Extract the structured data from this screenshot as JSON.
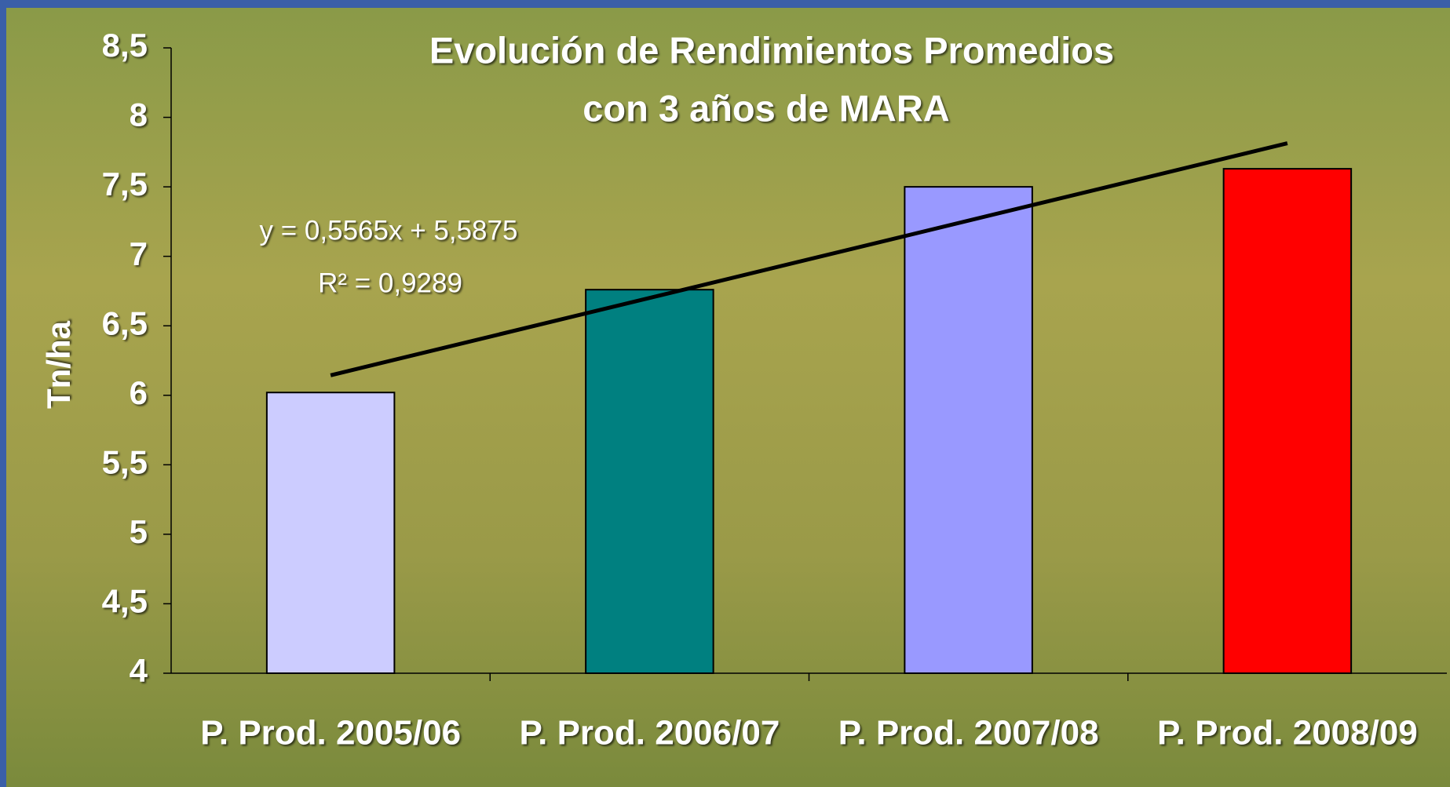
{
  "chart_data": {
    "type": "bar",
    "title": [
      "Evolución de Rendimientos Promedios",
      "con 3 años de MARA"
    ],
    "y_label": "Tn/ha",
    "categories": [
      "P. Prod. 2005/06",
      "P. Prod. 2006/07",
      "P. Prod. 2007/08",
      "P. Prod. 2008/09"
    ],
    "values": [
      6.02,
      6.76,
      7.5,
      7.63
    ],
    "colors": [
      "#ccccff",
      "#008080",
      "#9999ff",
      "#ff0000"
    ],
    "ylim": [
      4,
      8.5
    ],
    "yticks": [
      4,
      {
        "value": 4.5,
        "label": "4,5"
      },
      5,
      {
        "value": 5.5,
        "label": "5,5"
      },
      6,
      {
        "value": 6.5,
        "label": "6,5"
      },
      7,
      {
        "value": 7.5,
        "label": "7,5"
      },
      8,
      {
        "value": 8.5,
        "label": "8,5"
      }
    ],
    "trendline": {
      "slope": 0.5565,
      "intercept": 5.5875,
      "label": "y = 0,5565x + 5,5875",
      "r2_label": "R² = 0,9289"
    }
  }
}
